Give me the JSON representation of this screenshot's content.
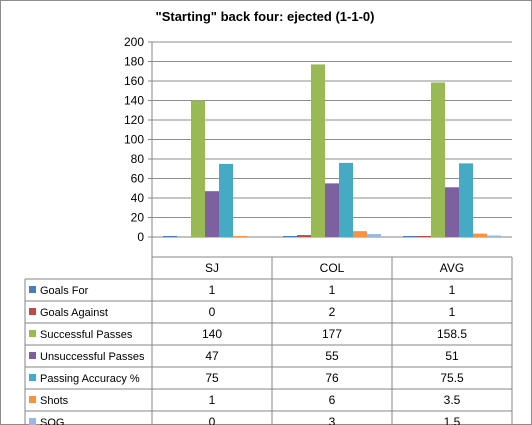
{
  "chart_data": {
    "type": "bar",
    "title": "\"Starting\" back four: ejected (1-1-0)",
    "categories": [
      "SJ",
      "COL",
      "AVG"
    ],
    "ylim": [
      0,
      200
    ],
    "yticks": [
      0,
      20,
      40,
      60,
      80,
      100,
      120,
      140,
      160,
      180,
      200
    ],
    "grid": true,
    "legend_placement": "data-table-left",
    "series": [
      {
        "name": "Goals For",
        "color": "#4a7ebb",
        "values": [
          1,
          1,
          1
        ],
        "labels": [
          "1",
          "1",
          "1"
        ]
      },
      {
        "name": "Goals Against",
        "color": "#be4b48",
        "values": [
          0,
          2,
          1
        ],
        "labels": [
          "0",
          "2",
          "1"
        ]
      },
      {
        "name": "Successful Passes",
        "color": "#98b954",
        "values": [
          140,
          177,
          158.5
        ],
        "labels": [
          "140",
          "177",
          "158.5"
        ]
      },
      {
        "name": "Unsuccessful Passes",
        "color": "#7d60a0",
        "values": [
          47,
          55,
          51
        ],
        "labels": [
          "47",
          "55",
          "51"
        ]
      },
      {
        "name": "Passing Accuracy %",
        "color": "#46aac5",
        "values": [
          75,
          76,
          75.5
        ],
        "labels": [
          "75",
          "76",
          "75.5"
        ]
      },
      {
        "name": "Shots",
        "color": "#f69240",
        "values": [
          1,
          6,
          3.5
        ],
        "labels": [
          "1",
          "6",
          "3.5"
        ]
      },
      {
        "name": "SOG",
        "color": "#99b9e1",
        "values": [
          0,
          3,
          1.5
        ],
        "labels": [
          "0",
          "3",
          "1.5"
        ]
      }
    ]
  }
}
